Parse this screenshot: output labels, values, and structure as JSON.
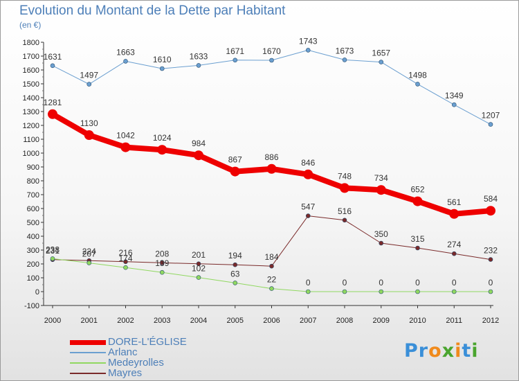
{
  "header": {
    "title": "Evolution du Montant de la Dette par Habitant",
    "unit": "(en €)"
  },
  "logo": {
    "text": "Proxiti",
    "letters": [
      {
        "ch": "P",
        "color": "#3a8fd8"
      },
      {
        "ch": "r",
        "color": "#3a8fd8"
      },
      {
        "ch": "o",
        "color": "#f08a1c"
      },
      {
        "ch": "x",
        "color": "#4aa52e"
      },
      {
        "ch": "i",
        "color": "#f08a1c"
      },
      {
        "ch": "t",
        "color": "#3a8fd8"
      },
      {
        "ch": "i",
        "color": "#4aa52e"
      }
    ]
  },
  "chart_data": {
    "type": "line",
    "title": "Evolution du Montant de la Dette par Habitant",
    "ylabel": "(en €)",
    "xlabel": "",
    "ylim": [
      -100,
      1800
    ],
    "ytick_step": 100,
    "grid": false,
    "legend_position": "bottom-left",
    "categories": [
      "2000",
      "2001",
      "2002",
      "2003",
      "2004",
      "2005",
      "2006",
      "2007",
      "2008",
      "2009",
      "2010",
      "2011",
      "2012"
    ],
    "series": [
      {
        "name": "DORE-L'ÉGLISE",
        "color": "#ee0000",
        "line_width": 8,
        "marker_radius": 7,
        "values": [
          1281,
          1130,
          1042,
          1024,
          984,
          867,
          886,
          846,
          748,
          734,
          652,
          561,
          584
        ],
        "labels": [
          "1281",
          "1130",
          "1042",
          "1024",
          "984",
          "867",
          "886",
          "846",
          "748",
          "734",
          "652",
          "561",
          "584"
        ]
      },
      {
        "name": "Arlanc",
        "color": "#6b9fd0",
        "line_width": 1,
        "marker_radius": 3,
        "values": [
          1631,
          1497,
          1663,
          1610,
          1633,
          1671,
          1670,
          1743,
          1673,
          1657,
          1498,
          1349,
          1207
        ],
        "labels": [
          "1631",
          "1497",
          "1663",
          "1610",
          "1633",
          "1671",
          "1670",
          "1743",
          "1673",
          "1657",
          "1498",
          "1349",
          "1207"
        ]
      },
      {
        "name": "Medeyrolles",
        "color": "#90d860",
        "line_width": 1,
        "marker_radius": 3,
        "values": [
          238,
          207,
          174,
          139,
          102,
          63,
          22,
          0,
          0,
          0,
          0,
          0,
          0
        ],
        "labels": [
          "238",
          "207",
          "174",
          "139",
          "102",
          "63",
          "22",
          "0",
          "0",
          "0",
          "0",
          "0",
          "0"
        ]
      },
      {
        "name": "Mayres",
        "color": "#7a2a2a",
        "line_width": 1,
        "marker_radius": 3,
        "values": [
          231,
          224,
          216,
          208,
          201,
          194,
          184,
          547,
          516,
          350,
          315,
          274,
          232
        ],
        "labels": [
          "231",
          "224",
          "216",
          "208",
          "201",
          "194",
          "184",
          "547",
          "516",
          "350",
          "315",
          "274",
          "232"
        ]
      }
    ]
  }
}
